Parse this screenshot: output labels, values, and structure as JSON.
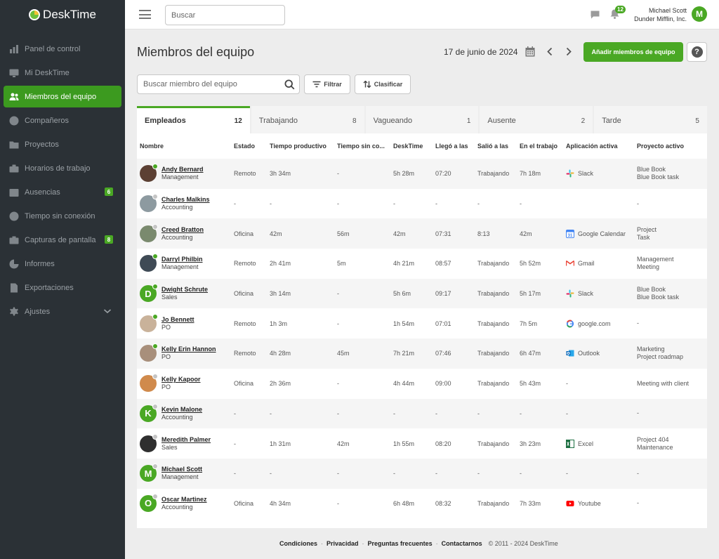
{
  "app": {
    "name": "DeskTime",
    "brand_color": "#4aa824",
    "sidebar_color": "#2b3136"
  },
  "sidebar": {
    "items": [
      {
        "label": "Panel de control",
        "icon": "bar-chart-icon"
      },
      {
        "label": "Mi DeskTime",
        "icon": "monitor-icon"
      },
      {
        "label": "Miembros del equipo",
        "icon": "team-icon",
        "active": true
      },
      {
        "label": "Compañeros",
        "icon": "person-icon"
      },
      {
        "label": "Proyectos",
        "icon": "folder-icon"
      },
      {
        "label": "Horarios de trabajo",
        "icon": "briefcase-icon"
      },
      {
        "label": "Ausencias",
        "icon": "calendar-icon",
        "badge": "6"
      },
      {
        "label": "Tiempo sin conexión",
        "icon": "clock-icon"
      },
      {
        "label": "Capturas de pantalla",
        "icon": "camera-icon",
        "badge": "8"
      },
      {
        "label": "Informes",
        "icon": "pie-chart-icon"
      },
      {
        "label": "Exportaciones",
        "icon": "export-icon"
      },
      {
        "label": "Ajustes",
        "icon": "gear-icon"
      }
    ]
  },
  "topbar": {
    "search_placeholder": "Buscar",
    "notifications_count": "12",
    "user_name": "Michael Scott",
    "company": "Dunder Mifflin, Inc.",
    "user_initial": "M"
  },
  "header": {
    "title": "Miembros del equipo",
    "date": "17 de junio de 2024",
    "add_button": "Añadir miembros de equipo",
    "help": "?"
  },
  "toolbar": {
    "search_placeholder": "Buscar miembro del equipo",
    "filter_label": "Filtrar",
    "sort_label": "Clasificar"
  },
  "tabs": [
    {
      "label": "Empleados",
      "count": "12",
      "active": true
    },
    {
      "label": "Trabajando",
      "count": "8"
    },
    {
      "label": "Vagueando",
      "count": "1"
    },
    {
      "label": "Ausente",
      "count": "2"
    },
    {
      "label": "Tarde",
      "count": "5"
    }
  ],
  "table": {
    "headers": [
      "Nombre",
      "Estado",
      "Tiempo productivo",
      "Tiempo sin co...",
      "DeskTime",
      "Llegó a las",
      "Salió a las",
      "En el trabajo",
      "Aplicación activa",
      "Proyecto activo"
    ],
    "rows": [
      {
        "name": "Andy Bernard",
        "dept": "Management",
        "avatar": "photo",
        "initial": "",
        "online": true,
        "estado": "Remoto",
        "productivo": "3h 34m",
        "sin_con": "-",
        "desktime": "5h 28m",
        "llego": "07:20",
        "salio": "Trabajando",
        "en_trabajo": "7h 18m",
        "app": "Slack",
        "app_icon": "slack-icon",
        "proj1": "Blue Book",
        "proj2": "Blue Book task"
      },
      {
        "name": "Charles Malkins",
        "dept": "Accounting",
        "avatar": "photo",
        "initial": "",
        "online": false,
        "estado": "-",
        "productivo": "-",
        "sin_con": "-",
        "desktime": "-",
        "llego": "-",
        "salio": "-",
        "en_trabajo": "-",
        "app": "",
        "app_icon": "",
        "proj1": "-",
        "proj2": ""
      },
      {
        "name": "Creed Bratton",
        "dept": "Accounting",
        "avatar": "photo",
        "initial": "",
        "online": false,
        "estado": "Oficina",
        "productivo": "42m",
        "sin_con": "56m",
        "desktime": "42m",
        "llego": "07:31",
        "salio": "8:13",
        "en_trabajo": "42m",
        "app": "Google Calendar",
        "app_icon": "google-calendar-icon",
        "proj1": "Project",
        "proj2": "Task"
      },
      {
        "name": "Darryl Philbin",
        "dept": "Management",
        "avatar": "photo",
        "initial": "",
        "online": true,
        "estado": "Remoto",
        "productivo": "2h 41m",
        "sin_con": "5m",
        "desktime": "4h 21m",
        "llego": "08:57",
        "salio": "Trabajando",
        "en_trabajo": "5h 52m",
        "app": "Gmail",
        "app_icon": "gmail-icon",
        "proj1": "Management",
        "proj2": "Meeting"
      },
      {
        "name": "Dwight Schrute",
        "dept": "Sales",
        "avatar": "letter",
        "initial": "D",
        "online": true,
        "estado": "Oficina",
        "productivo": "3h 14m",
        "sin_con": "-",
        "desktime": "5h 6m",
        "llego": "09:17",
        "salio": "Trabajando",
        "en_trabajo": "5h 17m",
        "app": "Slack",
        "app_icon": "slack-icon",
        "proj1": "Blue Book",
        "proj2": "Blue Book task"
      },
      {
        "name": "Jo Bennett",
        "dept": "PO",
        "avatar": "photo",
        "initial": "",
        "online": true,
        "estado": "Remoto",
        "productivo": "1h 3m",
        "sin_con": "-",
        "desktime": "1h 54m",
        "llego": "07:01",
        "salio": "Trabajando",
        "en_trabajo": "7h 5m",
        "app": "google.com",
        "app_icon": "google-icon",
        "proj1": "-",
        "proj2": ""
      },
      {
        "name": "Kelly Erin Hannon",
        "dept": "PO",
        "avatar": "photo",
        "initial": "",
        "online": true,
        "estado": "Remoto",
        "productivo": "4h 28m",
        "sin_con": "45m",
        "desktime": "7h 21m",
        "llego": "07:46",
        "salio": "Trabajando",
        "en_trabajo": "6h 47m",
        "app": "Outlook",
        "app_icon": "outlook-icon",
        "proj1": "Marketing",
        "proj2": "Project roadmap"
      },
      {
        "name": "Kelly Kapoor",
        "dept": "PO",
        "avatar": "photo",
        "initial": "",
        "online": false,
        "estado": "Oficina",
        "productivo": "2h 36m",
        "sin_con": "-",
        "desktime": "4h 44m",
        "llego": "09:00",
        "salio": "Trabajando",
        "en_trabajo": "5h 43m",
        "app": "-",
        "app_icon": "",
        "proj1": "Meeting with client",
        "proj2": ""
      },
      {
        "name": "Kevin Malone",
        "dept": "Accounting",
        "avatar": "letter",
        "initial": "K",
        "online": false,
        "estado": "-",
        "productivo": "-",
        "sin_con": "-",
        "desktime": "-",
        "llego": "-",
        "salio": "-",
        "en_trabajo": "-",
        "app": "-",
        "app_icon": "",
        "proj1": "-",
        "proj2": ""
      },
      {
        "name": "Meredith Palmer",
        "dept": "Sales",
        "avatar": "photo",
        "initial": "",
        "online": false,
        "estado": "-",
        "productivo": "1h 31m",
        "sin_con": "42m",
        "desktime": "1h 55m",
        "llego": "08:20",
        "salio": "Trabajando",
        "en_trabajo": "3h 23m",
        "app": "Excel",
        "app_icon": "excel-icon",
        "proj1": "Project 404",
        "proj2": "Maintenance"
      },
      {
        "name": "Michael Scott",
        "dept": "Management",
        "avatar": "letter",
        "initial": "M",
        "online": false,
        "estado": "-",
        "productivo": "-",
        "sin_con": "-",
        "desktime": "-",
        "llego": "-",
        "salio": "-",
        "en_trabajo": "-",
        "app": "-",
        "app_icon": "",
        "proj1": "-",
        "proj2": ""
      },
      {
        "name": "Oscar Martinez",
        "dept": "Accounting",
        "avatar": "letter",
        "initial": "O",
        "online": false,
        "estado": "Oficina",
        "productivo": "4h 34m",
        "sin_con": "-",
        "desktime": "6h 48m",
        "llego": "08:32",
        "salio": "Trabajando",
        "en_trabajo": "7h 33m",
        "app": "Youtube",
        "app_icon": "youtube-icon",
        "proj1": "-",
        "proj2": ""
      }
    ]
  },
  "footer": {
    "links": [
      "Condiciones",
      "Privacidad",
      "Preguntas frecuentes",
      "Contactarnos"
    ],
    "copyright": "© 2011 - 2024 DeskTime"
  }
}
